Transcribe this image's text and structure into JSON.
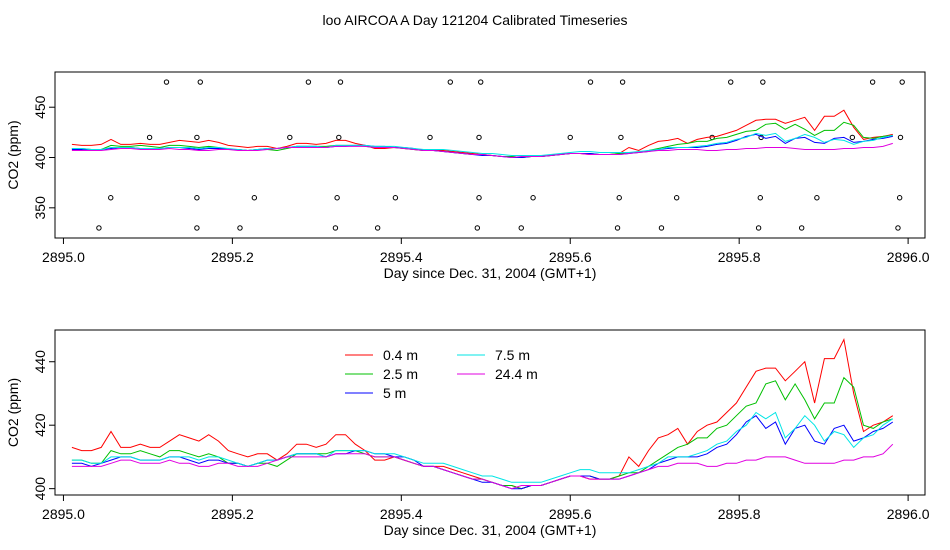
{
  "title": "loo AIRCOA A  Day 121204  Calibrated Timeseries",
  "chart_data": [
    {
      "type": "scatter+line",
      "xlabel": "Day since Dec. 31, 2004 (GMT+1)",
      "ylabel": "CO2 (ppm)",
      "xlim": [
        2894.99,
        2896.02
      ],
      "ylim": [
        320,
        485
      ],
      "x_ticks": [
        2895.0,
        2895.2,
        2895.4,
        2895.6,
        2895.8,
        2896.0
      ],
      "x_tick_labels": [
        "2895.0",
        "2895.2",
        "2895.4",
        "2895.6",
        "2895.8",
        "2896.0"
      ],
      "y_ticks": [
        350,
        400,
        450
      ],
      "y_tick_labels": [
        "350",
        "400",
        "450"
      ],
      "points": {
        "x": [
          2895.042,
          2895.056,
          2895.102,
          2895.122,
          2895.158,
          2895.158,
          2895.158,
          2895.162,
          2895.209,
          2895.226,
          2895.268,
          2895.29,
          2895.322,
          2895.324,
          2895.326,
          2895.328,
          2895.372,
          2895.393,
          2895.434,
          2895.458,
          2895.49,
          2895.492,
          2895.492,
          2895.494,
          2895.542,
          2895.556,
          2895.6,
          2895.624,
          2895.656,
          2895.658,
          2895.66,
          2895.662,
          2895.708,
          2895.726,
          2895.768,
          2895.79,
          2895.823,
          2895.825,
          2895.826,
          2895.828,
          2895.874,
          2895.892,
          2895.934,
          2895.958,
          2895.988,
          2895.99,
          2895.991,
          2895.993
        ],
        "y": [
          330,
          360,
          420,
          475,
          330,
          360,
          420,
          475,
          330,
          360,
          420,
          475,
          330,
          360,
          420,
          475,
          330,
          360,
          420,
          475,
          330,
          360,
          420,
          475,
          330,
          360,
          420,
          475,
          330,
          360,
          420,
          475,
          330,
          360,
          420,
          475,
          330,
          360,
          420,
          475,
          330,
          360,
          420,
          475,
          330,
          360,
          420,
          475
        ]
      },
      "series": [
        {
          "name": "0.4 m",
          "y": [
            413,
            412,
            412,
            413,
            418,
            413,
            413,
            414,
            413,
            413,
            415,
            417,
            416,
            415,
            417,
            415,
            412,
            411,
            410,
            411,
            411,
            409,
            411,
            414,
            414,
            413,
            414,
            417,
            417,
            414,
            412,
            409,
            409,
            410,
            409,
            408,
            407,
            407,
            407,
            406,
            405,
            404,
            403,
            402,
            401,
            401,
            400,
            401,
            401,
            402,
            403,
            404,
            404,
            403,
            403,
            403,
            404,
            410,
            407,
            412,
            416,
            417,
            419,
            414,
            418,
            420,
            421,
            424,
            427,
            432,
            437,
            438,
            438,
            434,
            437,
            440,
            427,
            441,
            441,
            447,
            430,
            418,
            420,
            421,
            423
          ]
        },
        {
          "name": "2.5 m",
          "y": [
            409,
            409,
            408,
            408,
            412,
            411,
            411,
            412,
            411,
            410,
            412,
            412,
            411,
            410,
            411,
            410,
            408,
            408,
            407,
            408,
            408,
            407,
            409,
            411,
            411,
            411,
            411,
            412,
            412,
            412,
            411,
            410,
            410,
            410,
            409,
            408,
            407,
            407,
            406,
            405,
            404,
            403,
            403,
            402,
            401,
            401,
            400,
            401,
            401,
            402,
            403,
            404,
            404,
            404,
            403,
            403,
            404,
            405,
            405,
            407,
            409,
            411,
            413,
            414,
            416,
            416,
            419,
            420,
            423,
            426,
            427,
            433,
            434,
            428,
            433,
            428,
            422,
            427,
            427,
            435,
            432,
            420,
            419,
            421,
            422
          ]
        },
        {
          "name": "5 m",
          "y": [
            408,
            408,
            407,
            408,
            409,
            410,
            410,
            409,
            409,
            409,
            410,
            410,
            409,
            408,
            409,
            409,
            408,
            408,
            407,
            408,
            409,
            409,
            410,
            411,
            411,
            411,
            410,
            411,
            411,
            412,
            412,
            411,
            411,
            410,
            410,
            409,
            407,
            407,
            406,
            405,
            404,
            403,
            402,
            402,
            401,
            400,
            400,
            401,
            401,
            402,
            403,
            404,
            404,
            404,
            403,
            403,
            403,
            404,
            405,
            406,
            408,
            409,
            410,
            410,
            410,
            411,
            413,
            414,
            417,
            421,
            423,
            419,
            421,
            414,
            419,
            420,
            415,
            414,
            419,
            420,
            415,
            416,
            418,
            419,
            421
          ]
        },
        {
          "name": "7.5 m",
          "y": [
            409,
            409,
            408,
            408,
            410,
            410,
            410,
            409,
            409,
            409,
            410,
            410,
            410,
            409,
            410,
            410,
            409,
            408,
            407,
            408,
            409,
            409,
            410,
            411,
            411,
            411,
            410,
            412,
            412,
            412,
            412,
            411,
            411,
            411,
            410,
            409,
            408,
            408,
            408,
            407,
            406,
            405,
            404,
            404,
            403,
            402,
            402,
            402,
            402,
            403,
            404,
            405,
            406,
            406,
            405,
            405,
            405,
            405,
            406,
            407,
            408,
            410,
            410,
            410,
            411,
            412,
            414,
            415,
            418,
            420,
            424,
            422,
            424,
            416,
            419,
            423,
            420,
            415,
            418,
            417,
            413,
            416,
            417,
            420,
            422
          ]
        },
        {
          "name": "24.4 m",
          "y": [
            407,
            407,
            407,
            407,
            408,
            409,
            409,
            408,
            408,
            408,
            409,
            408,
            408,
            407,
            407,
            408,
            408,
            407,
            407,
            407,
            408,
            409,
            410,
            410,
            410,
            410,
            410,
            411,
            411,
            411,
            411,
            410,
            410,
            410,
            409,
            408,
            407,
            407,
            406,
            405,
            404,
            403,
            403,
            402,
            401,
            400,
            401,
            401,
            401,
            402,
            403,
            404,
            404,
            403,
            403,
            403,
            403,
            404,
            405,
            406,
            407,
            407,
            408,
            408,
            408,
            407,
            407,
            408,
            408,
            409,
            409,
            410,
            410,
            410,
            409,
            408,
            408,
            408,
            408,
            409,
            409,
            410,
            410,
            411,
            414
          ]
        }
      ],
      "grid": false
    },
    {
      "type": "line",
      "xlabel": "Day since Dec. 31, 2004 (GMT+1)",
      "ylabel": "CO2 (ppm)",
      "xlim": [
        2894.99,
        2896.02
      ],
      "ylim": [
        398,
        450
      ],
      "x_ticks": [
        2895.0,
        2895.2,
        2895.4,
        2895.6,
        2895.8,
        2896.0
      ],
      "x_tick_labels": [
        "2895.0",
        "2895.2",
        "2895.4",
        "2895.6",
        "2895.8",
        "2896.0"
      ],
      "y_ticks": [
        400,
        420,
        440
      ],
      "y_tick_labels": [
        "400",
        "420",
        "440"
      ],
      "legend": {
        "placement": "top-left",
        "entries": [
          {
            "name": "0.4 m",
            "color": "#ff0000"
          },
          {
            "name": "2.5 m",
            "color": "#00c000"
          },
          {
            "name": "5 m",
            "color": "#0000ff"
          },
          {
            "name": "7.5 m",
            "color": "#00e5e5"
          },
          {
            "name": "24.4 m",
            "color": "#e000e0"
          }
        ]
      },
      "grid": false
    }
  ],
  "colors": {
    "0.4 m": "#ff0000",
    "2.5 m": "#00c000",
    "5 m": "#0000ff",
    "7.5 m": "#00e5e5",
    "24.4 m": "#e000e0",
    "axes": "#000000"
  }
}
